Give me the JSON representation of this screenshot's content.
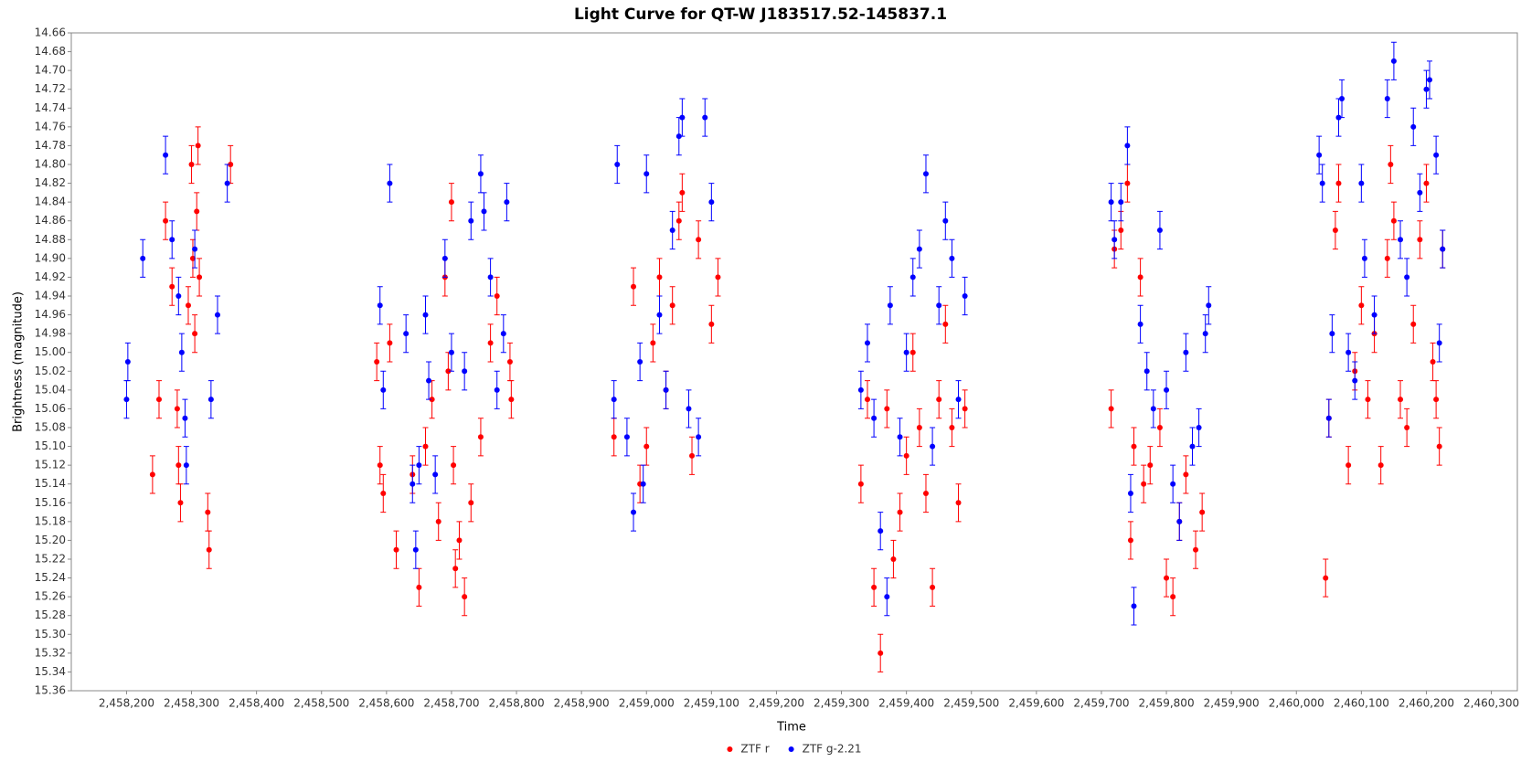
{
  "chart_data": {
    "type": "scatter",
    "title": "Light Curve for QT-W J183517.52-145837.1",
    "x_label": "Time",
    "y_label": "Brightness (magnitude)",
    "xlim": [
      2458115,
      2460340
    ],
    "xticks": [
      {
        "value": 2458200,
        "label": "2,458,200"
      },
      {
        "value": 2458300,
        "label": "2,458,300"
      },
      {
        "value": 2458400,
        "label": "2,458,400"
      },
      {
        "value": 2458500,
        "label": "2,458,500"
      },
      {
        "value": 2458600,
        "label": "2,458,600"
      },
      {
        "value": 2458700,
        "label": "2,458,700"
      },
      {
        "value": 2458800,
        "label": "2,458,800"
      },
      {
        "value": 2458900,
        "label": "2,458,900"
      },
      {
        "value": 2459000,
        "label": "2,459,000"
      },
      {
        "value": 2459100,
        "label": "2,459,100"
      },
      {
        "value": 2459200,
        "label": "2,459,200"
      },
      {
        "value": 2459300,
        "label": "2,459,300"
      },
      {
        "value": 2459400,
        "label": "2,459,400"
      },
      {
        "value": 2459500,
        "label": "2,459,500"
      },
      {
        "value": 2459600,
        "label": "2,459,600"
      },
      {
        "value": 2459700,
        "label": "2,459,700"
      },
      {
        "value": 2459800,
        "label": "2,459,800"
      },
      {
        "value": 2459900,
        "label": "2,459,900"
      },
      {
        "value": 2460000,
        "label": "2,460,000"
      },
      {
        "value": 2460100,
        "label": "2,460,100"
      },
      {
        "value": 2460200,
        "label": "2,460,200"
      },
      {
        "value": 2460300,
        "label": "2,460,300"
      }
    ],
    "ylim": [
      14.66,
      15.36
    ],
    "y_inverted": true,
    "yticks": [
      14.66,
      14.68,
      {
        "value": 14.7,
        "label": "14.70"
      },
      14.72,
      14.74,
      14.76,
      14.78,
      {
        "value": 14.8,
        "label": "14.80"
      },
      14.82,
      14.84,
      14.86,
      14.88,
      {
        "value": 14.9,
        "label": "14.90"
      },
      14.92,
      14.94,
      14.96,
      14.98,
      {
        "value": 15,
        "label": "15.00"
      },
      15.02,
      15.04,
      15.06,
      15.08,
      {
        "value": 15.1,
        "label": "15.10"
      },
      15.12,
      15.14,
      15.16,
      15.18,
      {
        "value": 15.2,
        "label": "15.20"
      },
      15.22,
      15.24,
      15.26,
      15.28,
      {
        "value": 15.3,
        "label": "15.30"
      },
      15.32,
      15.34,
      15.36
    ],
    "grid": false,
    "legend": "bottom",
    "series": [
      {
        "name": "ZTF r",
        "color": "#ff0000",
        "error": 0.02,
        "x": [
          2458240,
          2458250,
          2458260,
          2458270,
          2458278,
          2458280,
          2458283,
          2458295,
          2458300,
          2458302,
          2458305,
          2458308,
          2458310,
          2458312,
          2458325,
          2458327,
          2458360,
          2458585,
          2458590,
          2458595,
          2458605,
          2458615,
          2458640,
          2458650,
          2458660,
          2458670,
          2458680,
          2458690,
          2458695,
          2458700,
          2458703,
          2458706,
          2458712,
          2458720,
          2458730,
          2458745,
          2458760,
          2458770,
          2458790,
          2458792,
          2458950,
          2458980,
          2458990,
          2459000,
          2459010,
          2459020,
          2459030,
          2459040,
          2459050,
          2459055,
          2459070,
          2459080,
          2459100,
          2459110,
          2459330,
          2459340,
          2459350,
          2459360,
          2459370,
          2459380,
          2459390,
          2459400,
          2459410,
          2459420,
          2459430,
          2459440,
          2459450,
          2459460,
          2459470,
          2459480,
          2459490,
          2459715,
          2459720,
          2459730,
          2459740,
          2459745,
          2459750,
          2459760,
          2459765,
          2459775,
          2459790,
          2459800,
          2459810,
          2459820,
          2459830,
          2459845,
          2459855,
          2460045,
          2460050,
          2460060,
          2460065,
          2460080,
          2460090,
          2460100,
          2460110,
          2460120,
          2460130,
          2460140,
          2460145,
          2460150,
          2460160,
          2460170,
          2460180,
          2460190,
          2460200,
          2460210,
          2460215,
          2460220,
          2460225
        ],
        "values": [
          15.13,
          15.05,
          14.86,
          14.93,
          15.06,
          15.12,
          15.16,
          14.95,
          14.8,
          14.9,
          14.98,
          14.85,
          14.78,
          14.92,
          15.17,
          15.21,
          14.8,
          15.01,
          15.12,
          15.15,
          14.99,
          15.21,
          15.13,
          15.25,
          15.1,
          15.05,
          15.18,
          14.92,
          15.02,
          14.84,
          15.12,
          15.23,
          15.2,
          15.26,
          15.16,
          15.09,
          14.99,
          14.94,
          15.01,
          15.05,
          15.09,
          14.93,
          15.14,
          15.1,
          14.99,
          14.92,
          15.04,
          14.95,
          14.86,
          14.83,
          15.11,
          14.88,
          14.97,
          14.92,
          15.14,
          15.05,
          15.25,
          15.32,
          15.06,
          15.22,
          15.17,
          15.11,
          15,
          15.08,
          15.15,
          15.25,
          15.05,
          14.97,
          15.08,
          15.16,
          15.06,
          15.06,
          14.89,
          14.87,
          14.82,
          15.2,
          15.1,
          14.92,
          15.14,
          15.12,
          15.08,
          15.24,
          15.26,
          15.18,
          15.13,
          15.21,
          15.17,
          15.24,
          15.07,
          14.87,
          14.82,
          15.12,
          15.02,
          14.95,
          15.05,
          14.98,
          15.12,
          14.9,
          14.8,
          14.86,
          15.05,
          15.08,
          14.97,
          14.88,
          14.82,
          15.01,
          15.05,
          15.1,
          14.89
        ]
      },
      {
        "name": "ZTF g-2.21",
        "color": "#0000ff",
        "error": 0.02,
        "x": [
          2458200,
          2458202,
          2458225,
          2458260,
          2458270,
          2458280,
          2458285,
          2458290,
          2458292,
          2458305,
          2458330,
          2458340,
          2458355,
          2458590,
          2458595,
          2458605,
          2458630,
          2458640,
          2458645,
          2458650,
          2458660,
          2458665,
          2458675,
          2458690,
          2458700,
          2458720,
          2458730,
          2458745,
          2458750,
          2458760,
          2458770,
          2458780,
          2458785,
          2458950,
          2458955,
          2458970,
          2458980,
          2458990,
          2458995,
          2459000,
          2459020,
          2459030,
          2459040,
          2459050,
          2459055,
          2459065,
          2459080,
          2459090,
          2459100,
          2459330,
          2459340,
          2459350,
          2459360,
          2459370,
          2459375,
          2459390,
          2459400,
          2459410,
          2459420,
          2459430,
          2459440,
          2459450,
          2459460,
          2459470,
          2459480,
          2459490,
          2459715,
          2459720,
          2459730,
          2459740,
          2459745,
          2459750,
          2459760,
          2459770,
          2459780,
          2459790,
          2459800,
          2459810,
          2459820,
          2459830,
          2459840,
          2459850,
          2459860,
          2459865,
          2460035,
          2460040,
          2460050,
          2460055,
          2460065,
          2460070,
          2460080,
          2460090,
          2460100,
          2460105,
          2460120,
          2460140,
          2460150,
          2460160,
          2460170,
          2460180,
          2460190,
          2460200,
          2460205,
          2460215,
          2460220,
          2460225
        ],
        "values": [
          15.05,
          15.01,
          14.9,
          14.79,
          14.88,
          14.94,
          15,
          15.07,
          15.12,
          14.89,
          15.05,
          14.96,
          14.82,
          14.95,
          15.04,
          14.82,
          14.98,
          15.14,
          15.21,
          15.12,
          14.96,
          15.03,
          15.13,
          14.9,
          15,
          15.02,
          14.86,
          14.81,
          14.85,
          14.92,
          15.04,
          14.98,
          14.84,
          15.05,
          14.8,
          15.09,
          15.17,
          15.01,
          15.14,
          14.81,
          14.96,
          15.04,
          14.87,
          14.77,
          14.75,
          15.06,
          15.09,
          14.75,
          14.84,
          15.04,
          14.99,
          15.07,
          15.19,
          15.26,
          14.95,
          15.09,
          15,
          14.92,
          14.89,
          14.81,
          15.1,
          14.95,
          14.86,
          14.9,
          15.05,
          14.94,
          14.84,
          14.88,
          14.84,
          14.78,
          15.15,
          15.27,
          14.97,
          15.02,
          15.06,
          14.87,
          15.04,
          15.14,
          15.18,
          15,
          15.1,
          15.08,
          14.98,
          14.95,
          14.79,
          14.82,
          15.07,
          14.98,
          14.75,
          14.73,
          15,
          15.03,
          14.82,
          14.9,
          14.96,
          14.73,
          14.69,
          14.88,
          14.92,
          14.76,
          14.83,
          14.72,
          14.71,
          14.79,
          14.99,
          14.89
        ]
      }
    ]
  }
}
